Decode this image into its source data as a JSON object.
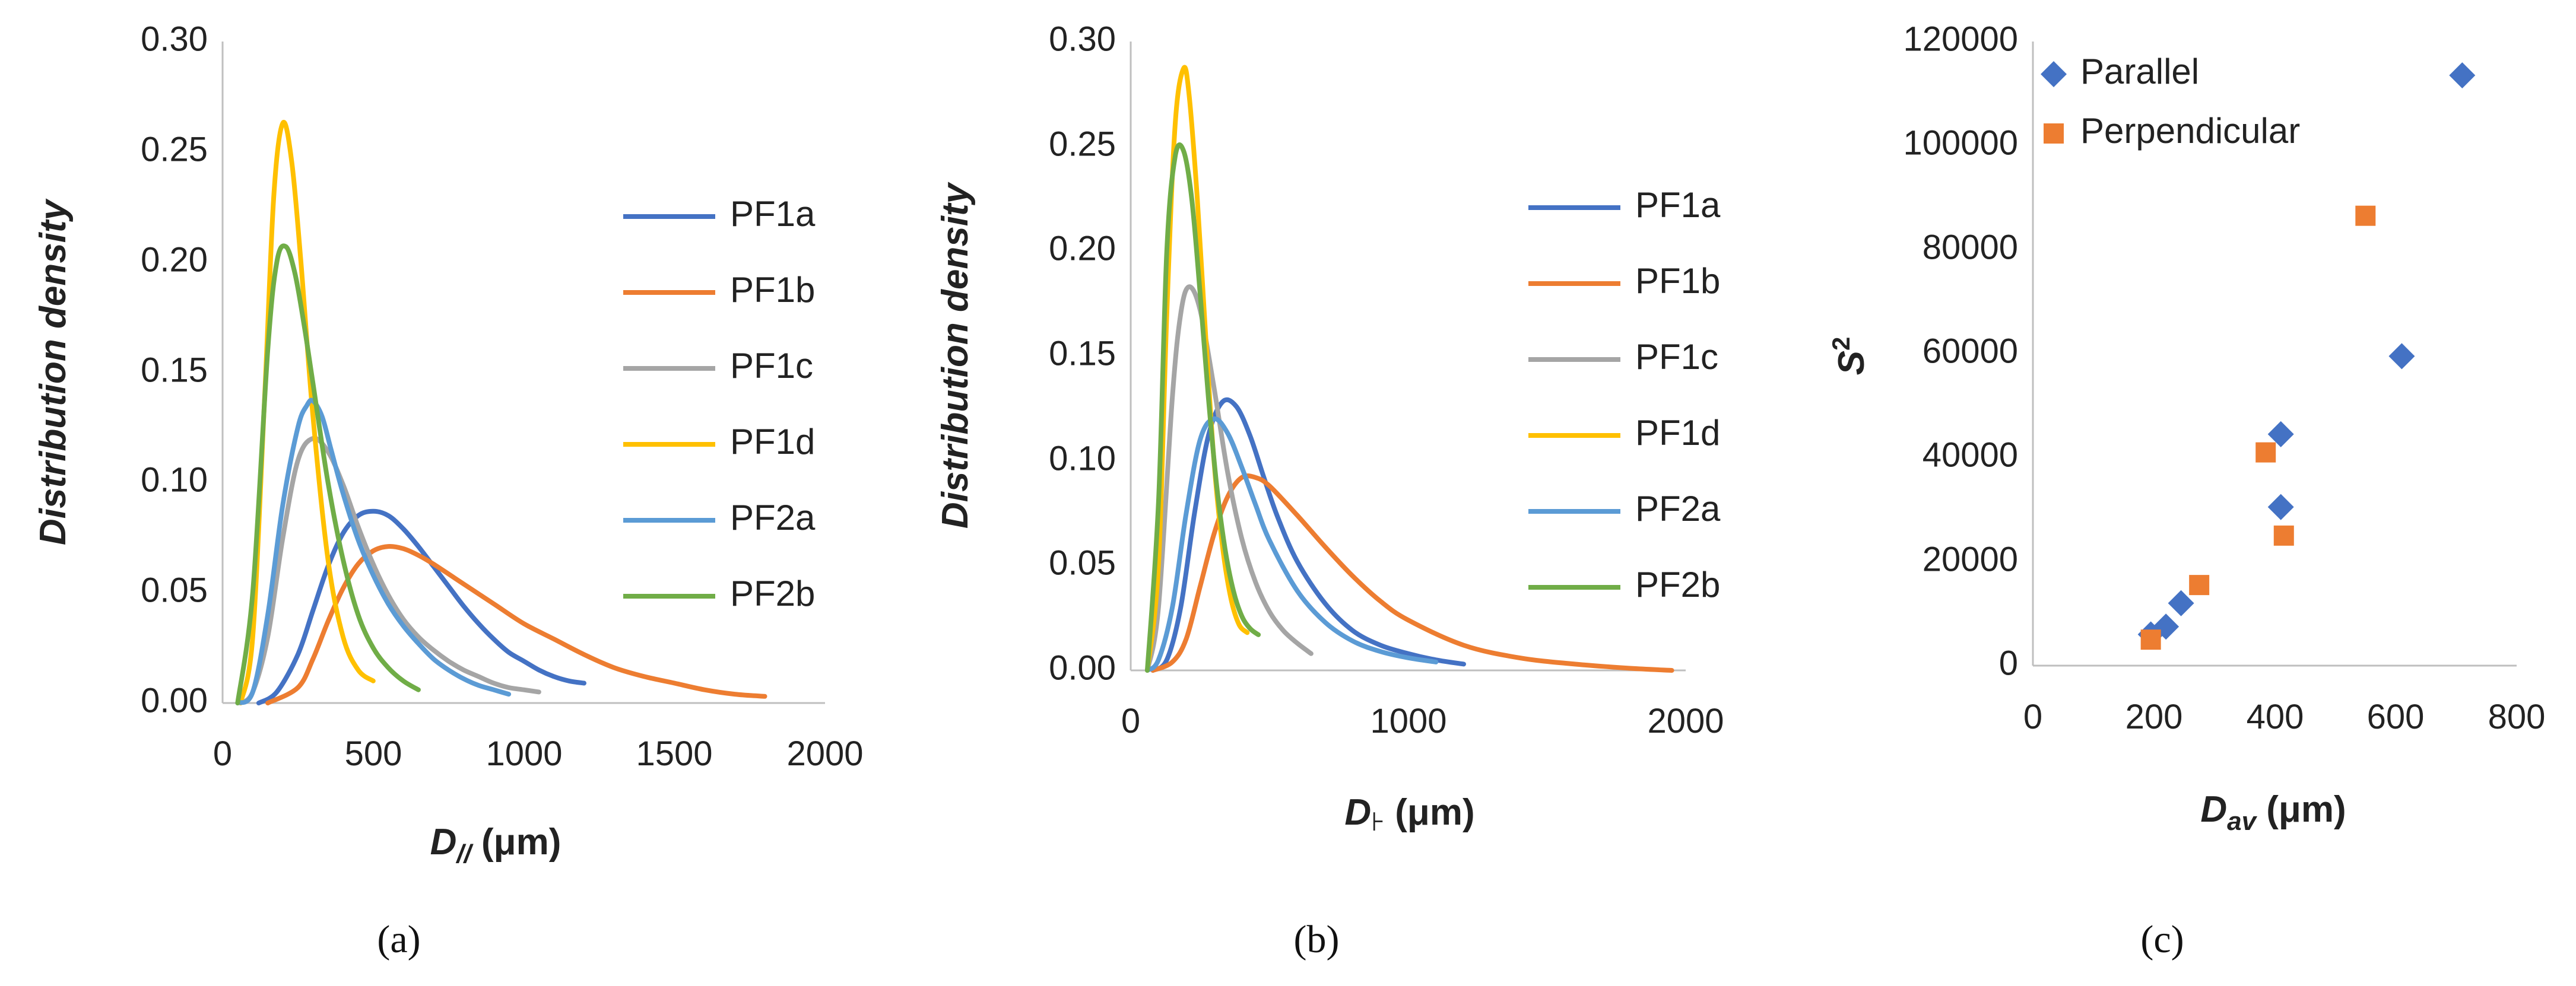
{
  "chart_data": [
    {
      "id": "a",
      "type": "line",
      "caption": "(a)",
      "xlabel_main": "D",
      "xlabel_sub": "//",
      "xlabel_unit": " (μm)",
      "ylabel": "Distribution density",
      "xlim": [
        0,
        2000
      ],
      "ylim": [
        0,
        0.3
      ],
      "xticks": [
        "0",
        "500",
        "1000",
        "1500",
        "2000"
      ],
      "yticks": [
        "0.00",
        "0.05",
        "0.10",
        "0.15",
        "0.20",
        "0.25",
        "0.30"
      ],
      "series": [
        {
          "name": "PF1a",
          "color": "#4472C4",
          "x": [
            120,
            180,
            250,
            300,
            350,
            400,
            450,
            500,
            550,
            600,
            650,
            700,
            750,
            800,
            850,
            900,
            950,
            1000,
            1050,
            1100,
            1150,
            1200
          ],
          "y": [
            0.0,
            0.005,
            0.022,
            0.042,
            0.062,
            0.077,
            0.085,
            0.087,
            0.085,
            0.079,
            0.071,
            0.062,
            0.053,
            0.044,
            0.036,
            0.029,
            0.023,
            0.019,
            0.015,
            0.012,
            0.01,
            0.009
          ]
        },
        {
          "name": "PF1b",
          "color": "#ED7D31",
          "x": [
            150,
            250,
            300,
            350,
            400,
            450,
            500,
            550,
            600,
            650,
            700,
            800,
            900,
            1000,
            1100,
            1200,
            1300,
            1400,
            1500,
            1600,
            1700,
            1800
          ],
          "y": [
            0.0,
            0.007,
            0.02,
            0.037,
            0.052,
            0.063,
            0.069,
            0.071,
            0.07,
            0.067,
            0.063,
            0.054,
            0.045,
            0.036,
            0.029,
            0.022,
            0.016,
            0.012,
            0.009,
            0.006,
            0.004,
            0.003
          ]
        },
        {
          "name": "PF1c",
          "color": "#A5A5A5",
          "x": [
            60,
            100,
            150,
            200,
            250,
            300,
            350,
            400,
            450,
            500,
            550,
            600,
            650,
            700,
            750,
            800,
            850,
            900,
            950,
            1000,
            1050
          ],
          "y": [
            0.0,
            0.005,
            0.03,
            0.075,
            0.11,
            0.12,
            0.114,
            0.099,
            0.08,
            0.063,
            0.049,
            0.038,
            0.03,
            0.024,
            0.019,
            0.015,
            0.012,
            0.009,
            0.007,
            0.006,
            0.005
          ]
        },
        {
          "name": "PF1d",
          "color": "#FFC000",
          "x": [
            60,
            100,
            140,
            170,
            200,
            230,
            260,
            300,
            350,
            400,
            450,
            500
          ],
          "y": [
            0.0,
            0.03,
            0.14,
            0.23,
            0.263,
            0.245,
            0.2,
            0.13,
            0.065,
            0.03,
            0.015,
            0.01
          ]
        },
        {
          "name": "PF2a",
          "color": "#5B9BD5",
          "x": [
            50,
            100,
            150,
            200,
            250,
            280,
            300,
            330,
            360,
            400,
            450,
            500,
            550,
            600,
            650,
            700,
            750,
            800,
            850,
            900,
            950
          ],
          "y": [
            0.0,
            0.005,
            0.04,
            0.09,
            0.125,
            0.135,
            0.137,
            0.13,
            0.115,
            0.095,
            0.074,
            0.058,
            0.045,
            0.035,
            0.027,
            0.02,
            0.015,
            0.011,
            0.008,
            0.006,
            0.004
          ]
        },
        {
          "name": "PF2b",
          "color": "#70AD47",
          "x": [
            50,
            100,
            150,
            180,
            210,
            240,
            270,
            300,
            350,
            400,
            450,
            500,
            550,
            600,
            650
          ],
          "y": [
            0.0,
            0.05,
            0.16,
            0.2,
            0.207,
            0.195,
            0.172,
            0.145,
            0.1,
            0.065,
            0.04,
            0.025,
            0.016,
            0.01,
            0.006
          ]
        }
      ]
    },
    {
      "id": "b",
      "type": "line",
      "caption": "(b)",
      "xlabel_main": "D",
      "xlabel_sub": "⊦",
      "xlabel_unit": " (μm)",
      "ylabel": "Distribution density",
      "xlim": [
        0,
        2000
      ],
      "ylim": [
        0,
        0.3
      ],
      "xticks": [
        "0",
        "1000",
        "2000"
      ],
      "yticks": [
        "0.00",
        "0.05",
        "0.10",
        "0.15",
        "0.20",
        "0.25",
        "0.30"
      ],
      "series": [
        {
          "name": "PF1a",
          "color": "#4472C4",
          "x": [
            80,
            130,
            180,
            230,
            280,
            330,
            380,
            430,
            480,
            530,
            600,
            700,
            800,
            900,
            1000,
            1100,
            1200
          ],
          "y": [
            0.0,
            0.005,
            0.03,
            0.075,
            0.112,
            0.128,
            0.126,
            0.112,
            0.092,
            0.073,
            0.052,
            0.032,
            0.019,
            0.012,
            0.008,
            0.005,
            0.003
          ]
        },
        {
          "name": "PF1b",
          "color": "#ED7D31",
          "x": [
            80,
            150,
            200,
            250,
            300,
            350,
            400,
            450,
            500,
            600,
            700,
            800,
            900,
            1000,
            1200,
            1400,
            1600,
            1800,
            1950
          ],
          "y": [
            0.0,
            0.004,
            0.015,
            0.04,
            0.065,
            0.083,
            0.092,
            0.092,
            0.088,
            0.074,
            0.059,
            0.045,
            0.033,
            0.024,
            0.012,
            0.006,
            0.003,
            0.001,
            0.0
          ]
        },
        {
          "name": "PF1c",
          "color": "#A5A5A5",
          "x": [
            60,
            100,
            150,
            180,
            210,
            250,
            300,
            350,
            400,
            450,
            500,
            550,
            600,
            650
          ],
          "y": [
            0.0,
            0.03,
            0.13,
            0.17,
            0.183,
            0.172,
            0.135,
            0.094,
            0.063,
            0.042,
            0.028,
            0.019,
            0.013,
            0.008
          ]
        },
        {
          "name": "PF1d",
          "color": "#FFC000",
          "x": [
            60,
            100,
            130,
            160,
            190,
            210,
            240,
            270,
            300,
            330,
            360,
            390,
            420
          ],
          "y": [
            0.0,
            0.05,
            0.17,
            0.26,
            0.287,
            0.275,
            0.225,
            0.16,
            0.1,
            0.06,
            0.035,
            0.022,
            0.018
          ]
        },
        {
          "name": "PF2a",
          "color": "#5B9BD5",
          "x": [
            60,
            100,
            150,
            200,
            250,
            300,
            350,
            400,
            450,
            500,
            600,
            700,
            800,
            900,
            1000,
            1100
          ],
          "y": [
            0.0,
            0.005,
            0.03,
            0.075,
            0.11,
            0.12,
            0.113,
            0.097,
            0.079,
            0.062,
            0.038,
            0.023,
            0.014,
            0.009,
            0.006,
            0.004
          ]
        },
        {
          "name": "PF2b",
          "color": "#70AD47",
          "x": [
            60,
            100,
            130,
            160,
            190,
            220,
            250,
            280,
            310,
            340,
            370,
            400,
            430,
            460
          ],
          "y": [
            0.0,
            0.08,
            0.2,
            0.245,
            0.248,
            0.225,
            0.18,
            0.13,
            0.088,
            0.058,
            0.038,
            0.026,
            0.02,
            0.017
          ]
        }
      ]
    },
    {
      "id": "c",
      "type": "scatter",
      "caption": "(c)",
      "xlabel_main": "D",
      "xlabel_sub": "av",
      "xlabel_unit": " (μm)",
      "ylabel_main": "S",
      "ylabel_sup": "2",
      "xlim": [
        0,
        800
      ],
      "ylim": [
        0,
        120000
      ],
      "xticks": [
        "0",
        "200",
        "400",
        "600",
        "800"
      ],
      "yticks": [
        "0",
        "20000",
        "40000",
        "60000",
        "80000",
        "100000",
        "120000"
      ],
      "series": [
        {
          "name": "Parallel",
          "marker": "diamond",
          "color": "#4472C4",
          "x": [
            195,
            220,
            245,
            410,
            410,
            610,
            710
          ],
          "y": [
            6000,
            7500,
            12000,
            30500,
            44500,
            59500,
            113500
          ]
        },
        {
          "name": "Perpendicular",
          "marker": "square",
          "color": "#ED7D31",
          "x": [
            195,
            275,
            385,
            415,
            550
          ],
          "y": [
            5000,
            15500,
            41000,
            25000,
            86500
          ]
        }
      ]
    }
  ]
}
